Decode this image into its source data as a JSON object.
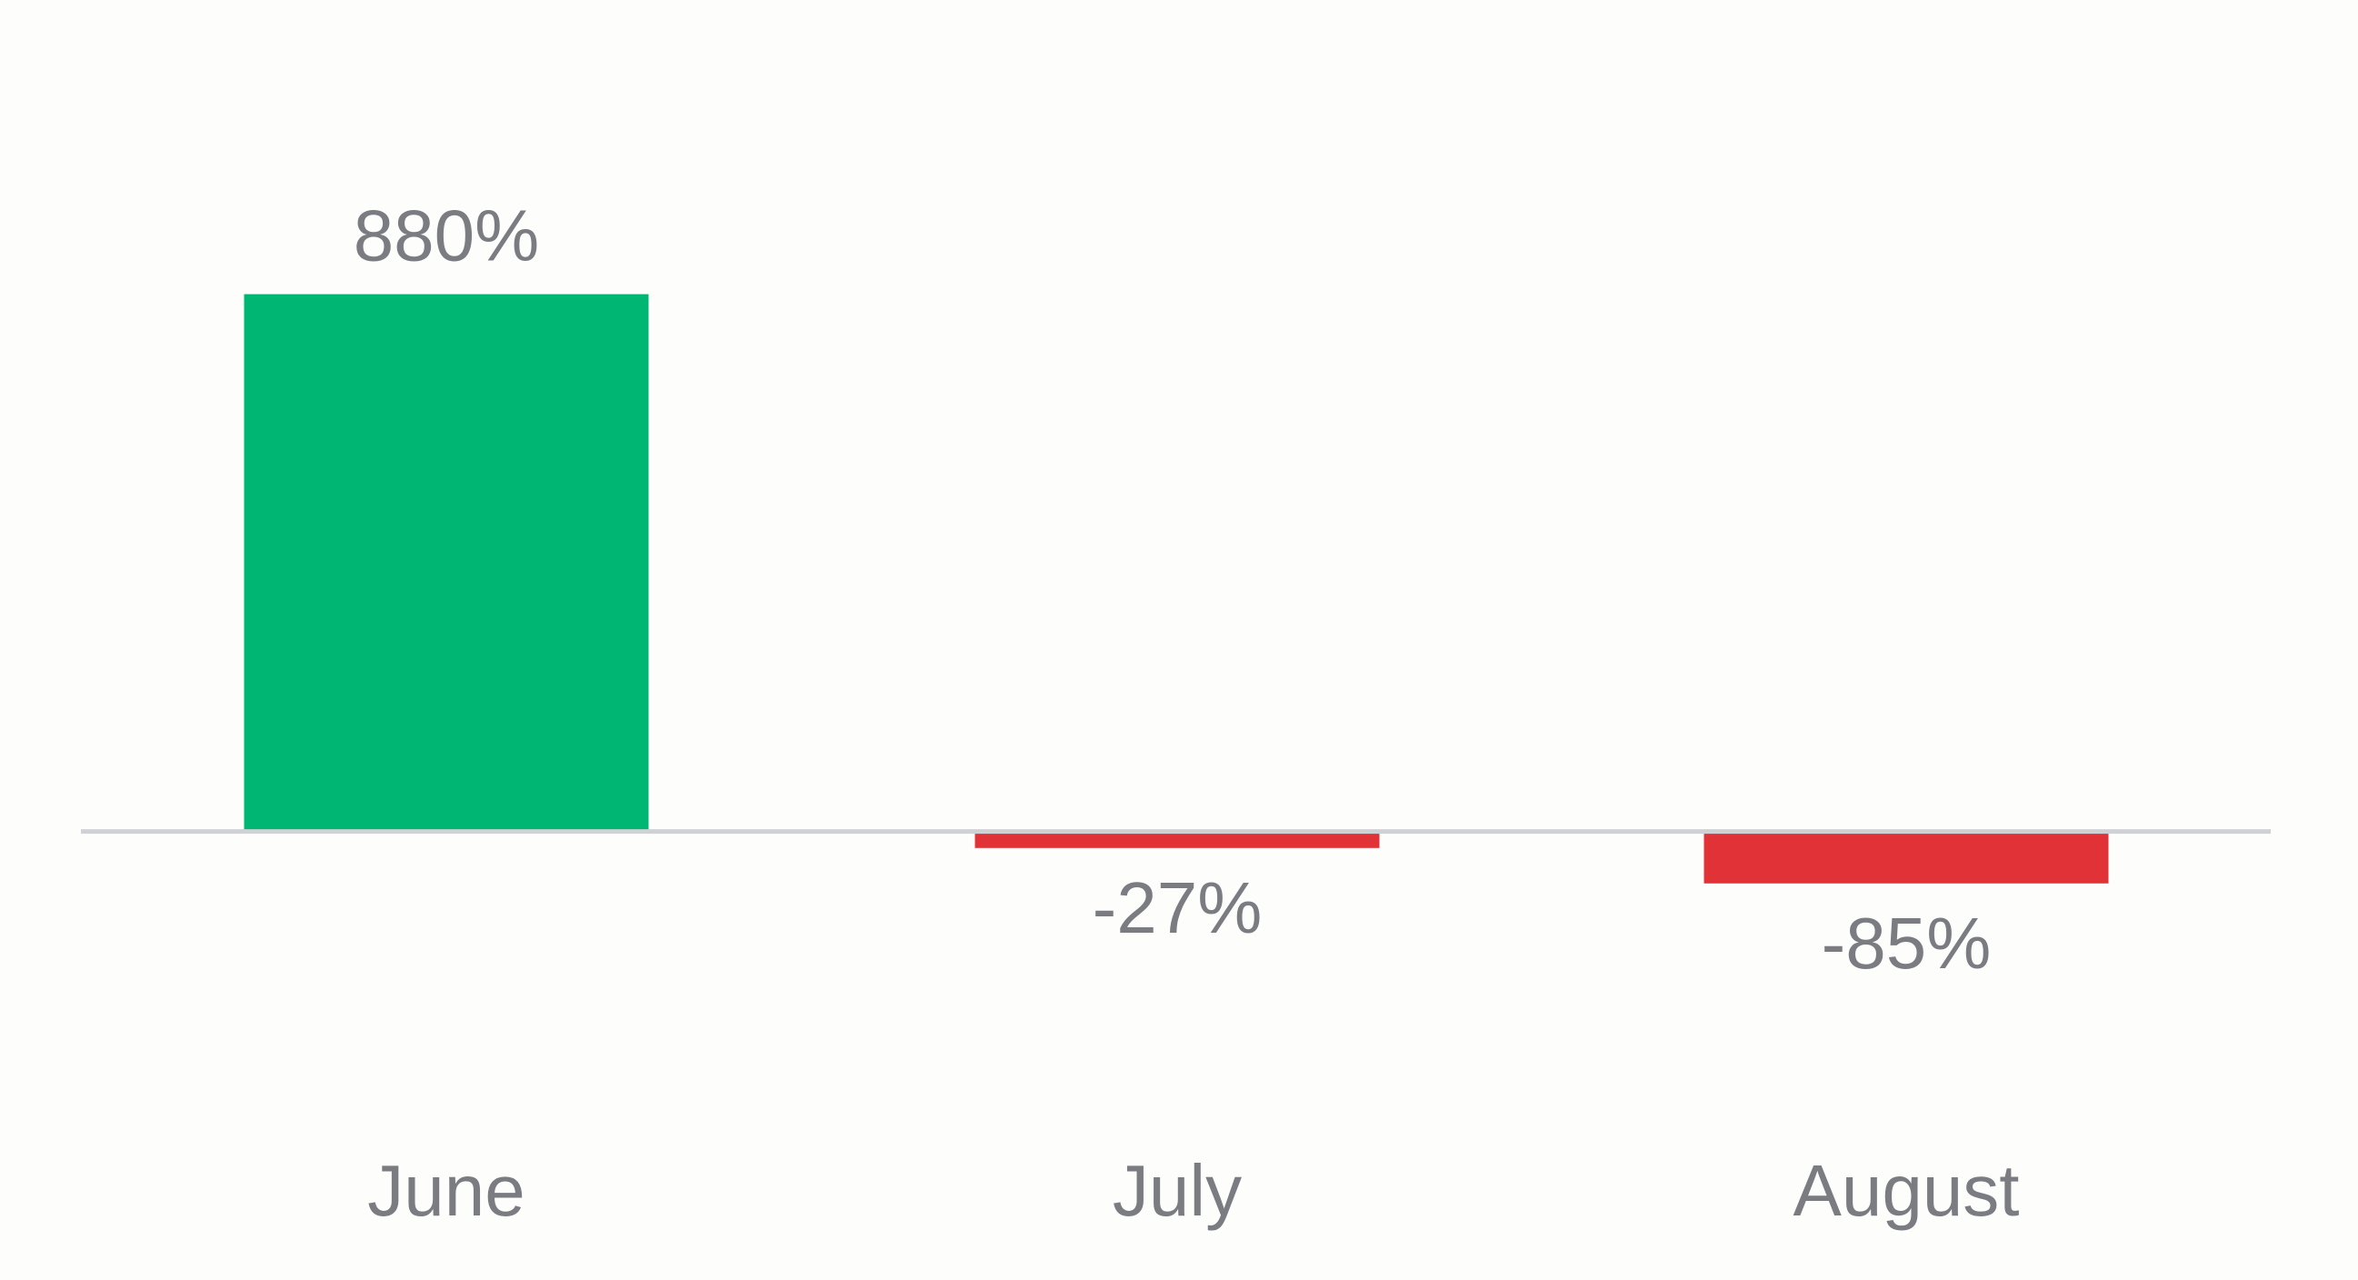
{
  "chart_data": {
    "type": "bar",
    "categories": [
      "June",
      "July",
      "August"
    ],
    "values": [
      880,
      -27,
      -85
    ],
    "value_labels": [
      "880%",
      "-27%",
      "-85%"
    ],
    "colors": [
      "#00b673",
      "#e03237",
      "#e03237"
    ],
    "ylim": [
      -200,
      1000
    ]
  }
}
